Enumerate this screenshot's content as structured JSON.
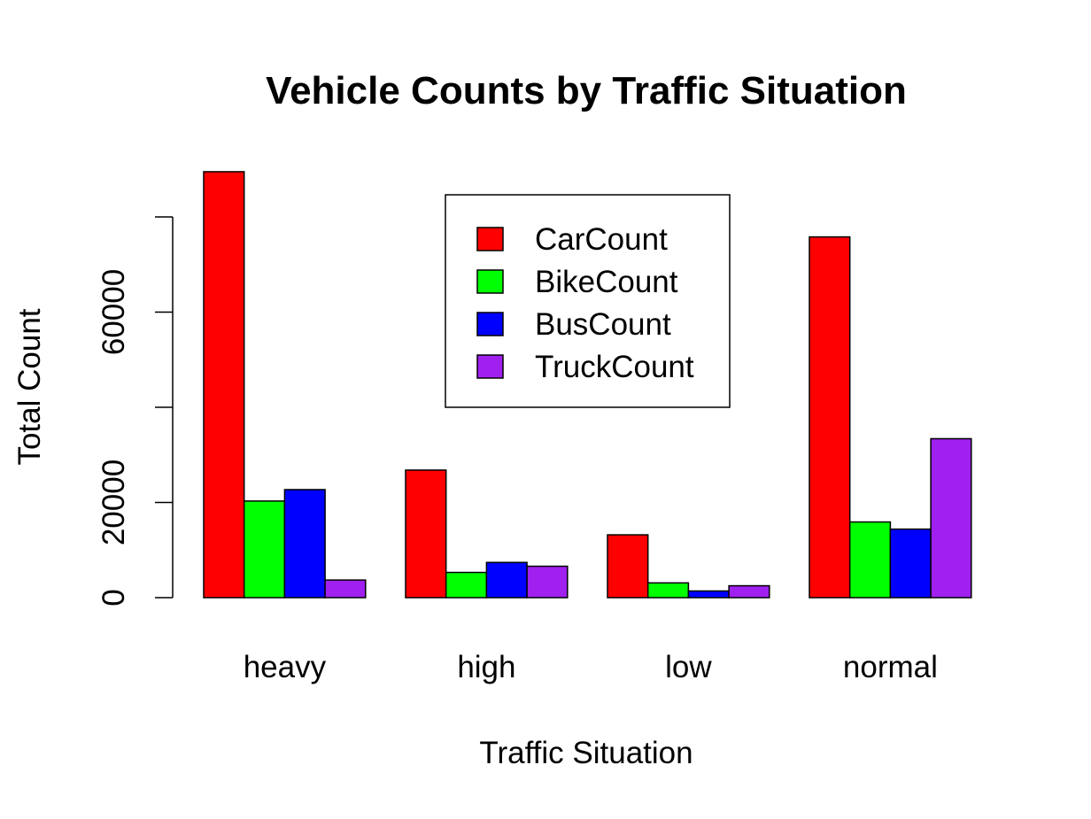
{
  "chart_data": {
    "type": "bar",
    "title": "Vehicle Counts by Traffic Situation",
    "xlabel": "Traffic Situation",
    "ylabel": "Total Count",
    "categories": [
      "heavy",
      "high",
      "low",
      "normal"
    ],
    "series": [
      {
        "name": "CarCount",
        "color": "#ff0000",
        "values": [
          89500,
          26800,
          13200,
          75800
        ]
      },
      {
        "name": "BikeCount",
        "color": "#00ff00",
        "values": [
          20300,
          5300,
          3100,
          15900
        ]
      },
      {
        "name": "BusCount",
        "color": "#0000ff",
        "values": [
          22700,
          7400,
          1400,
          14400
        ]
      },
      {
        "name": "TruckCount",
        "color": "#a020f0",
        "values": [
          3700,
          6600,
          2500,
          33400
        ]
      }
    ],
    "yticks": [
      0,
      20000,
      40000,
      60000,
      80000
    ],
    "ytick_labels": [
      "0",
      "20000",
      "",
      "60000",
      ""
    ],
    "ylim": [
      0,
      90000
    ],
    "grid": false,
    "legend_position": "top-center"
  }
}
